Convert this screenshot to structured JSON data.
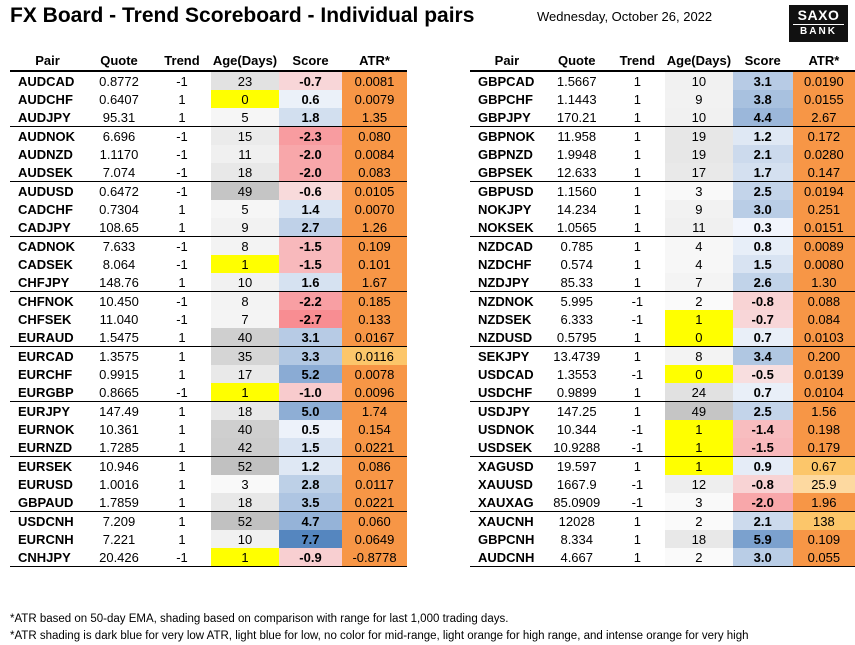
{
  "header": {
    "title": "FX Board - Trend Scoreboard - Individual pairs",
    "date": "Wednesday, October 26, 2022",
    "logo_line1": "SAXO",
    "logo_line2": "BANK"
  },
  "columns": [
    "Pair",
    "Quote",
    "Trend",
    "Age(Days)",
    "Score",
    "ATR*"
  ],
  "colors": {
    "atr_orange": "#f4a460",
    "atr_intense": "#f79646",
    "age_yellow": "#ffff00",
    "score_blue": "#4f81bd",
    "score_red": "#f4777a"
  },
  "left_rows": [
    [
      "AUDCAD",
      "0.8772",
      "-1",
      "23",
      "-0.7",
      "0.0081"
    ],
    [
      "AUDCHF",
      "0.6407",
      "1",
      "0",
      "0.6",
      "0.0079"
    ],
    [
      "AUDJPY",
      "95.31",
      "1",
      "5",
      "1.8",
      "1.35"
    ],
    [
      "AUDNOK",
      "6.696",
      "-1",
      "15",
      "-2.3",
      "0.080"
    ],
    [
      "AUDNZD",
      "1.1170",
      "-1",
      "11",
      "-2.0",
      "0.0084"
    ],
    [
      "AUDSEK",
      "7.074",
      "-1",
      "18",
      "-2.0",
      "0.083"
    ],
    [
      "AUDUSD",
      "0.6472",
      "-1",
      "49",
      "-0.6",
      "0.0105"
    ],
    [
      "CADCHF",
      "0.7304",
      "1",
      "5",
      "1.4",
      "0.0070"
    ],
    [
      "CADJPY",
      "108.65",
      "1",
      "9",
      "2.7",
      "1.26"
    ],
    [
      "CADNOK",
      "7.633",
      "-1",
      "8",
      "-1.5",
      "0.109"
    ],
    [
      "CADSEK",
      "8.064",
      "-1",
      "1",
      "-1.5",
      "0.101"
    ],
    [
      "CHFJPY",
      "148.76",
      "1",
      "10",
      "1.6",
      "1.67"
    ],
    [
      "CHFNOK",
      "10.450",
      "-1",
      "8",
      "-2.2",
      "0.185"
    ],
    [
      "CHFSEK",
      "11.040",
      "-1",
      "7",
      "-2.7",
      "0.133"
    ],
    [
      "EURAUD",
      "1.5475",
      "1",
      "40",
      "3.1",
      "0.0167"
    ],
    [
      "EURCAD",
      "1.3575",
      "1",
      "35",
      "3.3",
      "0.0116"
    ],
    [
      "EURCHF",
      "0.9915",
      "1",
      "17",
      "5.2",
      "0.0078"
    ],
    [
      "EURGBP",
      "0.8665",
      "-1",
      "1",
      "-1.0",
      "0.0096"
    ],
    [
      "EURJPY",
      "147.49",
      "1",
      "18",
      "5.0",
      "1.74"
    ],
    [
      "EURNOK",
      "10.361",
      "1",
      "40",
      "0.5",
      "0.154"
    ],
    [
      "EURNZD",
      "1.7285",
      "1",
      "42",
      "1.5",
      "0.0221"
    ],
    [
      "EURSEK",
      "10.946",
      "1",
      "52",
      "1.2",
      "0.086"
    ],
    [
      "EURUSD",
      "1.0016",
      "1",
      "3",
      "2.8",
      "0.0117"
    ],
    [
      "GBPAUD",
      "1.7859",
      "1",
      "18",
      "3.5",
      "0.0221"
    ],
    [
      "USDCNH",
      "7.209",
      "1",
      "52",
      "4.7",
      "0.060"
    ],
    [
      "EURCNH",
      "7.221",
      "1",
      "10",
      "7.7",
      "0.0649"
    ],
    [
      "CNHJPY",
      "20.426",
      "-1",
      "1",
      "-0.9",
      "-0.8778"
    ]
  ],
  "right_rows": [
    [
      "GBPCAD",
      "1.5667",
      "1",
      "10",
      "3.1",
      "0.0190"
    ],
    [
      "GBPCHF",
      "1.1443",
      "1",
      "9",
      "3.8",
      "0.0155"
    ],
    [
      "GBPJPY",
      "170.21",
      "1",
      "10",
      "4.4",
      "2.67"
    ],
    [
      "GBPNOK",
      "11.958",
      "1",
      "19",
      "1.2",
      "0.172"
    ],
    [
      "GBPNZD",
      "1.9948",
      "1",
      "19",
      "2.1",
      "0.0280"
    ],
    [
      "GBPSEK",
      "12.633",
      "1",
      "17",
      "1.7",
      "0.147"
    ],
    [
      "GBPUSD",
      "1.1560",
      "1",
      "3",
      "2.5",
      "0.0194"
    ],
    [
      "NOKJPY",
      "14.234",
      "1",
      "9",
      "3.0",
      "0.251"
    ],
    [
      "NOKSEK",
      "1.0565",
      "1",
      "11",
      "0.3",
      "0.0151"
    ],
    [
      "NZDCAD",
      "0.785",
      "1",
      "4",
      "0.8",
      "0.0089"
    ],
    [
      "NZDCHF",
      "0.574",
      "1",
      "4",
      "1.5",
      "0.0080"
    ],
    [
      "NZDJPY",
      "85.33",
      "1",
      "7",
      "2.6",
      "1.30"
    ],
    [
      "NZDNOK",
      "5.995",
      "-1",
      "2",
      "-0.8",
      "0.088"
    ],
    [
      "NZDSEK",
      "6.333",
      "-1",
      "1",
      "-0.7",
      "0.084"
    ],
    [
      "NZDUSD",
      "0.5795",
      "1",
      "0",
      "0.7",
      "0.0103"
    ],
    [
      "SEKJPY",
      "13.4739",
      "1",
      "8",
      "3.4",
      "0.200"
    ],
    [
      "USDCAD",
      "1.3553",
      "-1",
      "0",
      "-0.5",
      "0.0139"
    ],
    [
      "USDCHF",
      "0.9899",
      "1",
      "24",
      "0.7",
      "0.0104"
    ],
    [
      "USDJPY",
      "147.25",
      "1",
      "49",
      "2.5",
      "1.56"
    ],
    [
      "USDNOK",
      "10.344",
      "-1",
      "1",
      "-1.4",
      "0.198"
    ],
    [
      "USDSEK",
      "10.9288",
      "-1",
      "1",
      "-1.5",
      "0.179"
    ],
    [
      "XAGUSD",
      "19.597",
      "1",
      "1",
      "0.9",
      "0.67"
    ],
    [
      "XAUUSD",
      "1667.9",
      "-1",
      "12",
      "-0.8",
      "25.9"
    ],
    [
      "XAUXAG",
      "85.0909",
      "-1",
      "3",
      "-2.0",
      "1.96"
    ],
    [
      "XAUCNH",
      "12028",
      "1",
      "2",
      "2.1",
      "138"
    ],
    [
      "GBPCNH",
      "8.334",
      "1",
      "18",
      "5.9",
      "0.109"
    ],
    [
      "AUDCNH",
      "4.667",
      "1",
      "2",
      "3.0",
      "0.055"
    ]
  ],
  "left_atr_shade": [
    "o",
    "o",
    "o",
    "o",
    "o",
    "o",
    "o",
    "o",
    "o",
    "o",
    "o",
    "o",
    "o",
    "o",
    "o",
    "l",
    "o",
    "o",
    "o",
    "o",
    "o",
    "o",
    "o",
    "o",
    "o",
    "o",
    "o"
  ],
  "right_atr_shade": [
    "o",
    "o",
    "o",
    "o",
    "o",
    "o",
    "o",
    "o",
    "o",
    "o",
    "o",
    "o",
    "o",
    "o",
    "o",
    "o",
    "o",
    "o",
    "o",
    "o",
    "o",
    "l",
    "p",
    "o",
    "l",
    "o",
    "o"
  ],
  "footnotes": [
    "*ATR based on 50-day EMA, shading based on comparison with range for last 1,000 trading days.",
    "*ATR shading is dark blue for very low ATR, light blue for low, no color for mid-range, light orange for high range, and intense orange for very high"
  ]
}
